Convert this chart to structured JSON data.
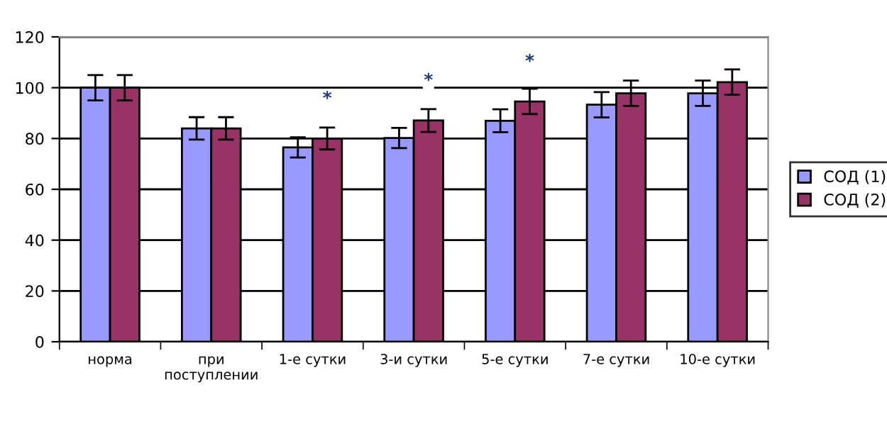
{
  "chart_data": {
    "type": "bar",
    "categories": [
      "норма",
      "при поступлении",
      "1-е сутки",
      "3-и сутки",
      "5-е сутки",
      "7-е сутки",
      "10-е сутки"
    ],
    "series": [
      {
        "name": "СОД (1)",
        "color": "#9999ff",
        "values": [
          100,
          84,
          76.5,
          80.2,
          87,
          93.3,
          97.8
        ],
        "errors": [
          5,
          4.4,
          4,
          4,
          4.5,
          5,
          5
        ]
      },
      {
        "name": "СОД (2)",
        "color": "#993366",
        "values": [
          100,
          84,
          80,
          87.1,
          94.6,
          97.8,
          102.2
        ],
        "errors": [
          5,
          4.4,
          4.3,
          4.5,
          5,
          5,
          5
        ]
      }
    ],
    "annotations": [
      {
        "text": "*",
        "x": "1-е сутки",
        "y": 80
      },
      {
        "text": "*",
        "x": "3-и сутки",
        "y": 87.1
      },
      {
        "text": "*",
        "x": "5-е сутки",
        "y": 94.6
      }
    ],
    "ylim": [
      0,
      120
    ],
    "yticks": [
      0,
      20,
      40,
      60,
      80,
      100,
      120
    ],
    "grid": "y",
    "legend": "right"
  }
}
